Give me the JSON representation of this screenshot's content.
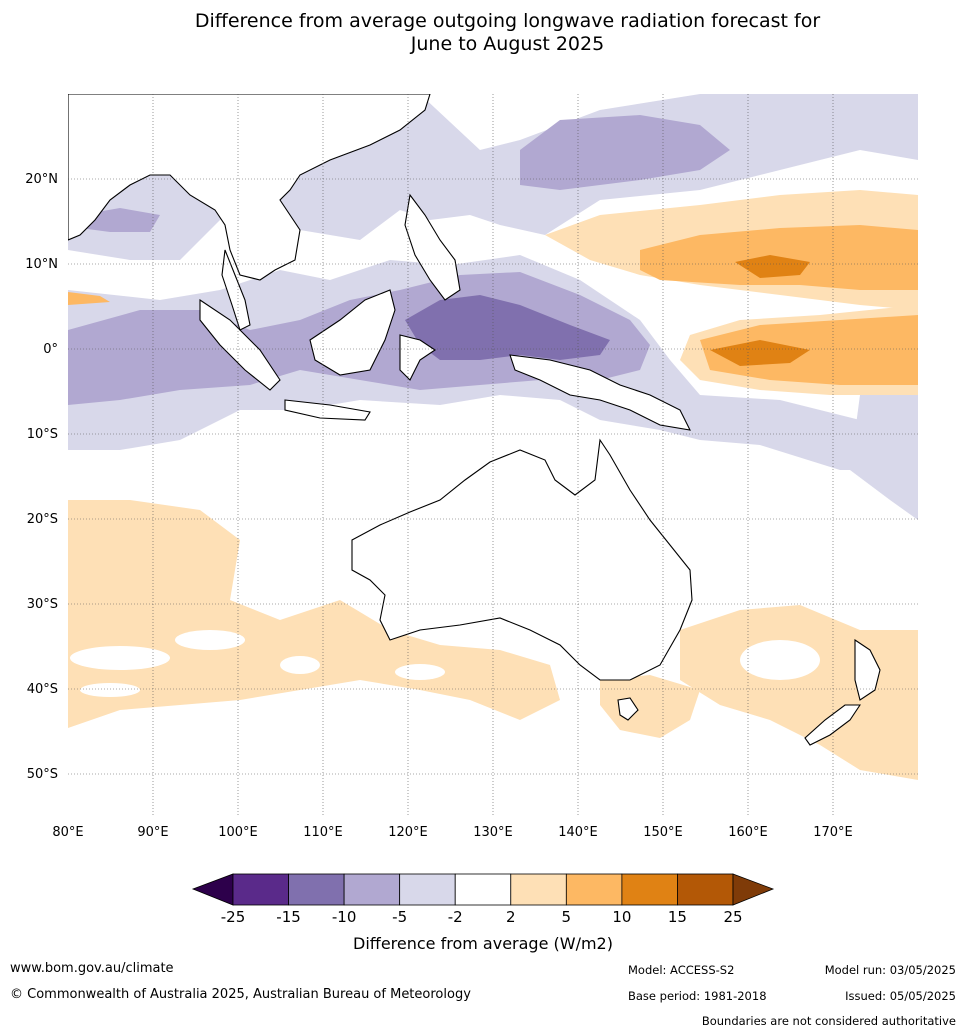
{
  "title_line1": "Difference from average outgoing longwave radiation forecast for",
  "title_line2": "June to August 2025",
  "map": {
    "lon_labels": [
      "80°E",
      "90°E",
      "100°E",
      "110°E",
      "120°E",
      "130°E",
      "140°E",
      "150°E",
      "160°E",
      "170°E"
    ],
    "lat_labels": [
      "20°N",
      "10°N",
      "0°",
      "10°S",
      "20°S",
      "30°S",
      "40°S",
      "50°S"
    ],
    "lon_range": [
      80,
      180
    ],
    "lat_range": [
      -55,
      30
    ]
  },
  "colorbar": {
    "title": "Difference from average (W/m2)",
    "tick_labels": [
      "-25",
      "-15",
      "-10",
      "-5",
      "-2",
      "2",
      "5",
      "10",
      "15",
      "25"
    ],
    "colors": [
      "#2d004b",
      "#5a2a8a",
      "#8070ae",
      "#b1a8d1",
      "#d8d8ea",
      "#ffffff",
      "#fee0b6",
      "#fdb863",
      "#e08214",
      "#b35806",
      "#7f3b08"
    ]
  },
  "footer": {
    "website": "www.bom.gov.au/climate",
    "copyright": "© Commonwealth of Australia 2025, Australian Bureau of Meteorology",
    "model": "Model: ACCESS-S2",
    "base_period": "Base period: 1981-2018",
    "model_run": "Model run: 03/05/2025",
    "issued": "Issued: 05/05/2025",
    "disclaimer": "Boundaries are not considered authoritative"
  }
}
